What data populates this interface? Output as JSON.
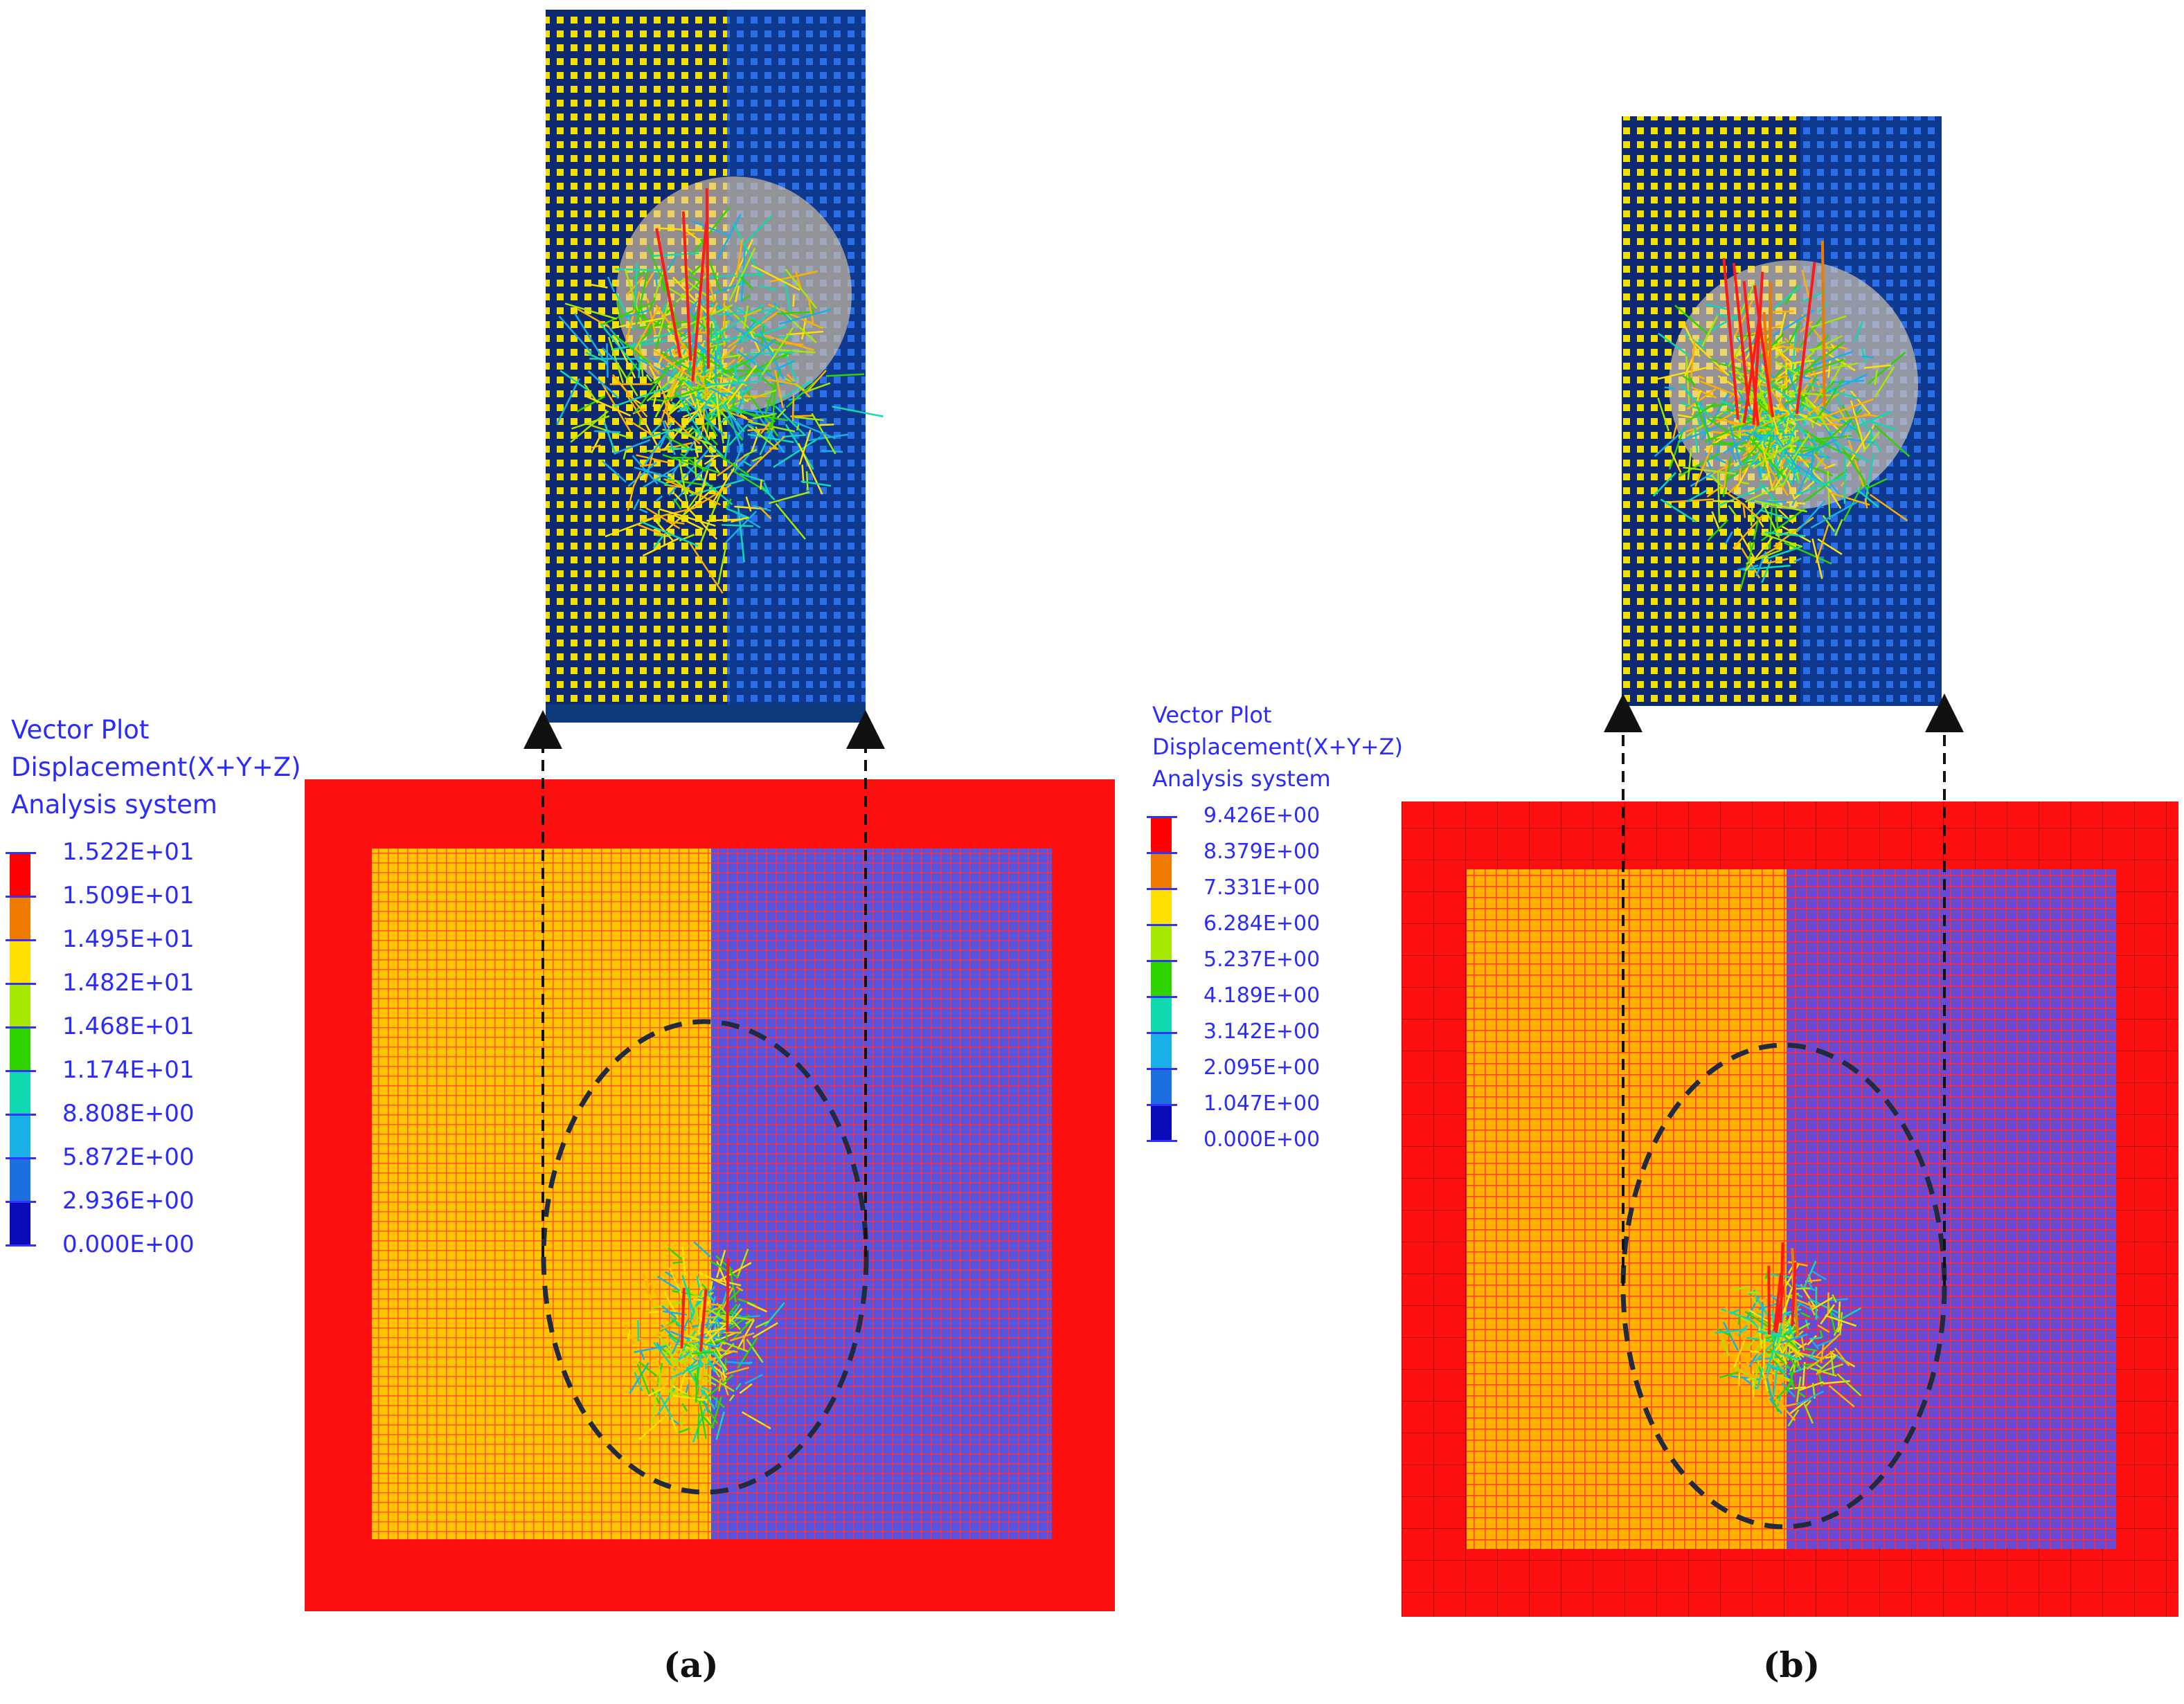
{
  "legend_a": {
    "lines": [
      "Vector Plot",
      "Displacement(X+Y+Z)",
      "Analysis system"
    ],
    "values": [
      "1.522E+01",
      "1.509E+01",
      "1.495E+01",
      "1.482E+01",
      "1.468E+01",
      "1.174E+01",
      "8.808E+00",
      "5.872E+00",
      "2.936E+00",
      "0.000E+00"
    ],
    "colors": [
      "#ff0000",
      "#ee7a00",
      "#ffe000",
      "#a6e800",
      "#2fd400",
      "#10d9b0",
      "#18b0e6",
      "#1c6fe0",
      "#0a0ab8"
    ]
  },
  "legend_b": {
    "lines": [
      "Vector Plot",
      "Displacement(X+Y+Z)",
      "Analysis system"
    ],
    "values": [
      "9.426E+00",
      "8.379E+00",
      "7.331E+00",
      "6.284E+00",
      "5.237E+00",
      "4.189E+00",
      "3.142E+00",
      "2.095E+00",
      "1.047E+00",
      "0.000E+00"
    ],
    "colors": [
      "#ff0000",
      "#ee7a00",
      "#ffe000",
      "#a6e800",
      "#2fd400",
      "#10d9b0",
      "#18b0e6",
      "#1c6fe0",
      "#0a0ab8"
    ]
  },
  "captions": {
    "a": "(a)",
    "b": "(b)"
  },
  "colors": {
    "frame_red": "#ff1010",
    "mesh_yellow": "#ffd000",
    "mesh_blue": "#4a4ad8",
    "zoom_bg": "#123c8c"
  }
}
